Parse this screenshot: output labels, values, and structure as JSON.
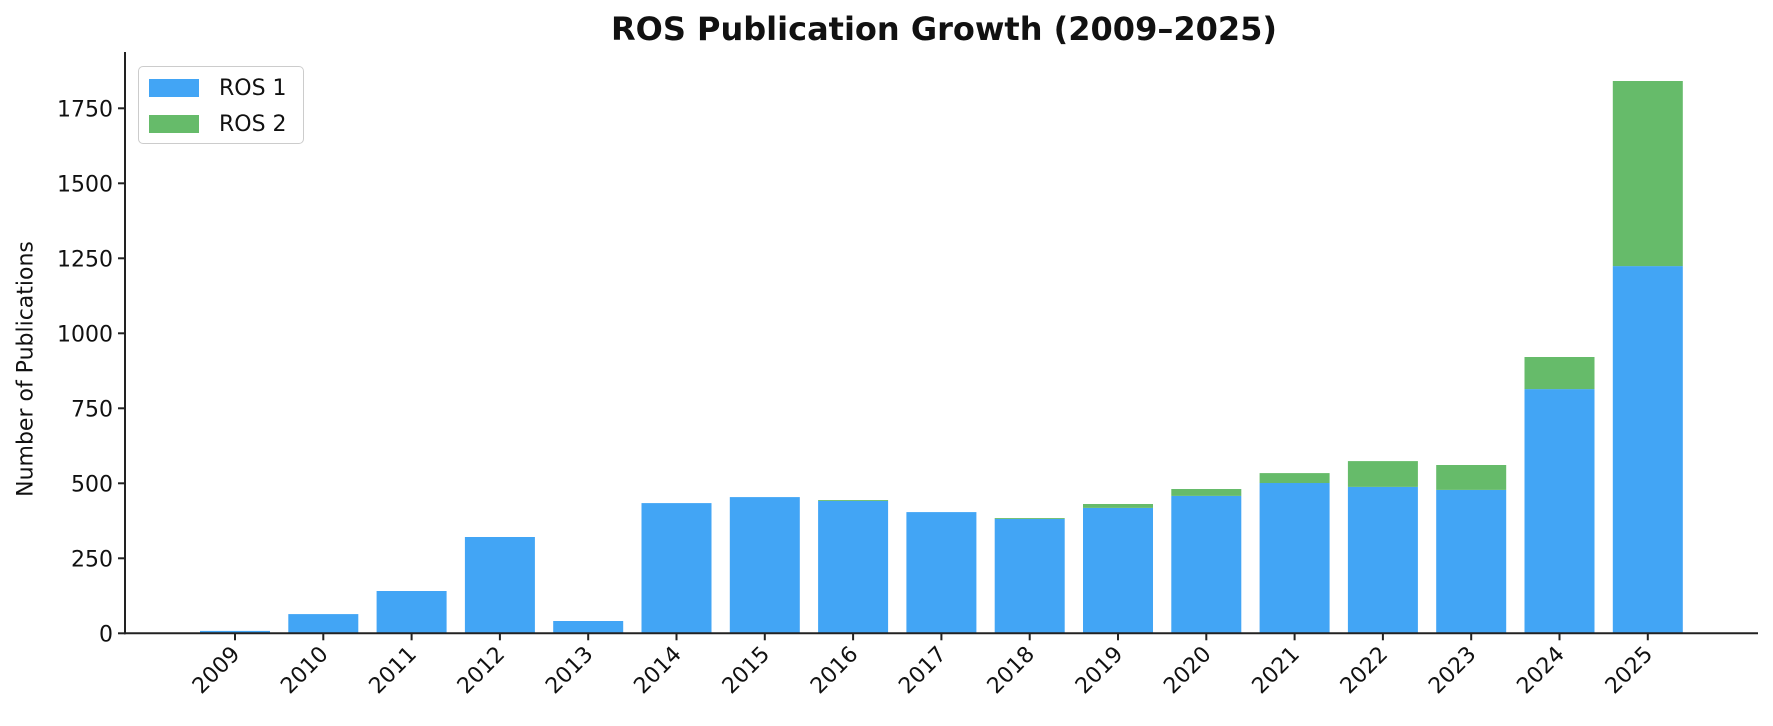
{
  "chart_data": {
    "type": "bar",
    "stacked": true,
    "title": "ROS Publication Growth (2009–2025)",
    "xlabel": "",
    "ylabel": "Number of Publications",
    "ylim": [
      0,
      1900
    ],
    "yticks": [
      0,
      250,
      500,
      750,
      1000,
      1250,
      1500,
      1750
    ],
    "grid": false,
    "legend_position": "upper left",
    "categories": [
      "2009",
      "2010",
      "2011",
      "2012",
      "2013",
      "2014",
      "2015",
      "2016",
      "2017",
      "2018",
      "2019",
      "2020",
      "2021",
      "2022",
      "2023",
      "2024",
      "2025"
    ],
    "series": [
      {
        "name": "ROS 1",
        "color": "#42A5F5",
        "values": [
          8,
          64,
          141,
          321,
          41,
          434,
          454,
          441,
          404,
          381,
          418,
          458,
          501,
          488,
          478,
          814,
          1224
        ]
      },
      {
        "name": "ROS 2",
        "color": "#66BB6A",
        "values": [
          0,
          0,
          0,
          0,
          0,
          0,
          0,
          3,
          0,
          3,
          13,
          23,
          33,
          86,
          83,
          107,
          617
        ]
      }
    ]
  },
  "legend": {
    "items": [
      {
        "label": "ROS 1",
        "color": "#42A5F5"
      },
      {
        "label": "ROS 2",
        "color": "#66BB6A"
      }
    ]
  }
}
